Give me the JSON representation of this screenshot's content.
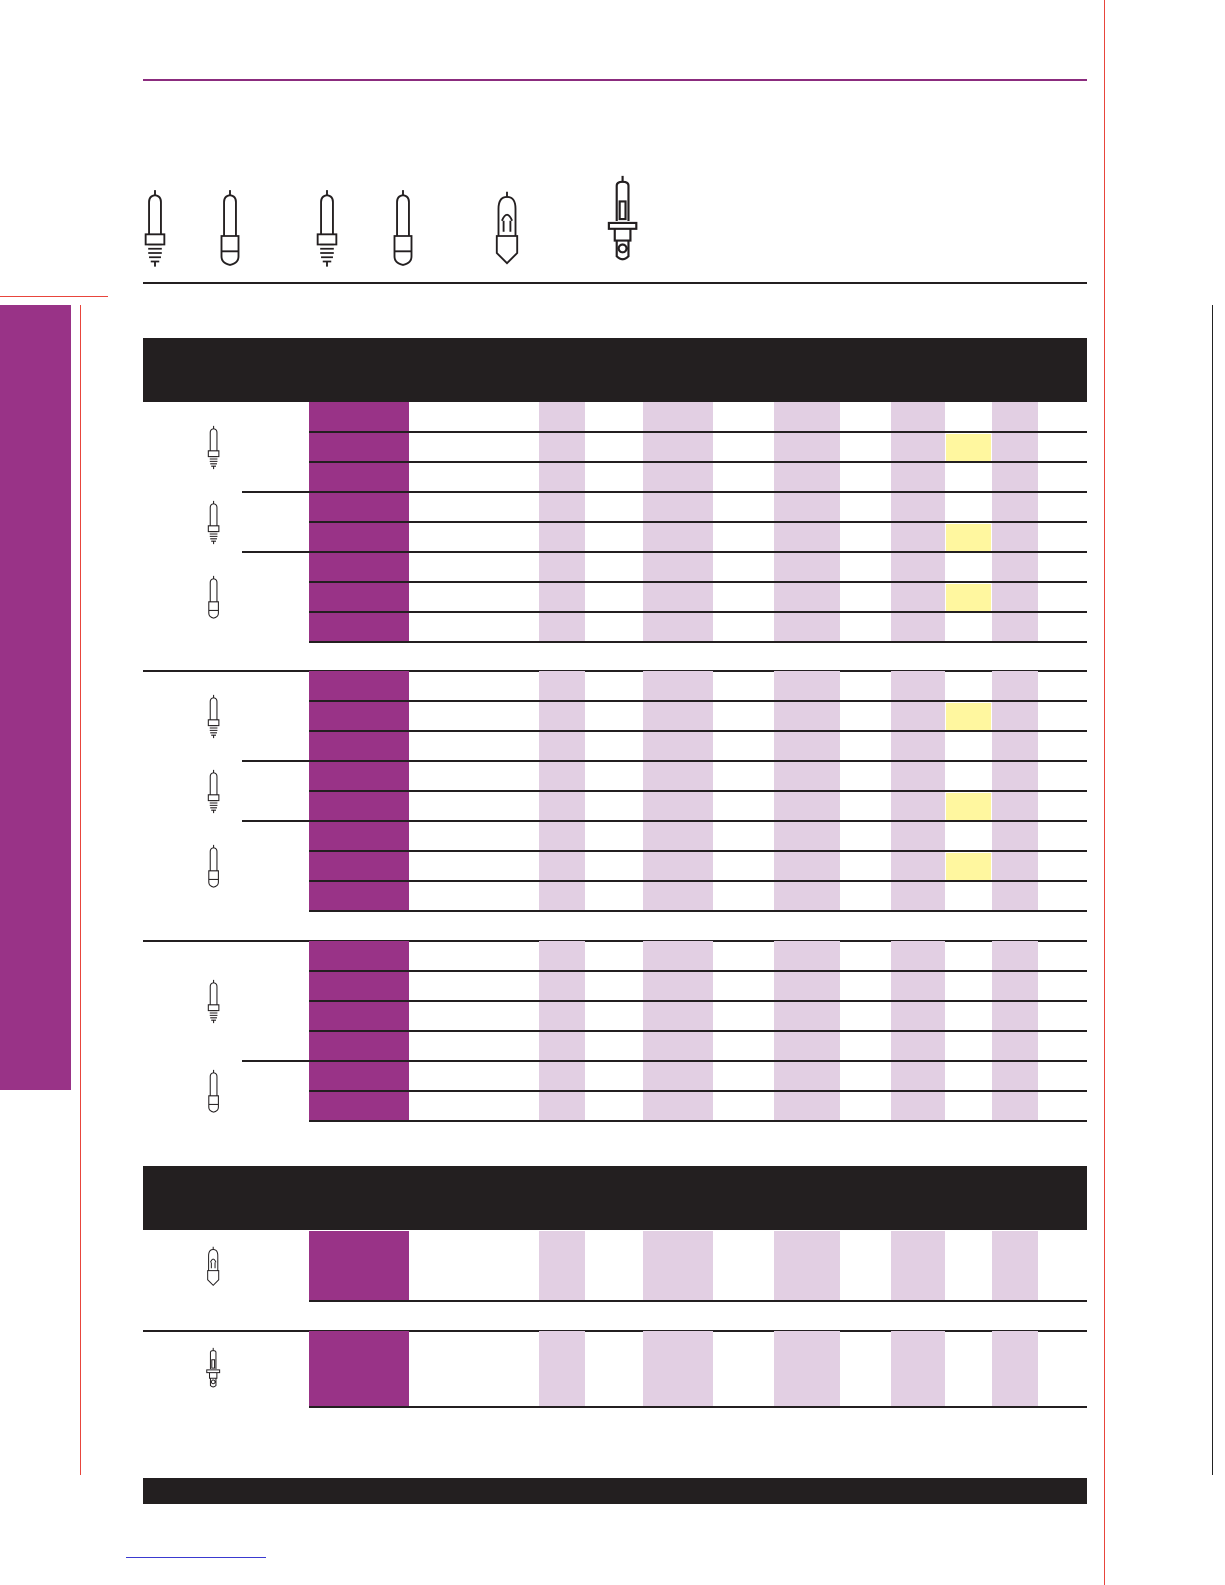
{
  "colors": {
    "brand_purple": "#993387",
    "light_purple": "#e2cfe3",
    "highlight_yellow": "#fff79f",
    "dark": "#231f20",
    "trim_red": "#e8453c",
    "rule_purple": "#8b2c7e"
  },
  "header_icons": [
    {
      "icon": "mini-candelabra-bulb-icon"
    },
    {
      "icon": "bayonet-bulb-icon"
    },
    {
      "icon": "mini-candelabra-bulb-icon"
    },
    {
      "icon": "bayonet-bulb-icon"
    },
    {
      "icon": "mini-bayonet-globe-bulb-icon"
    },
    {
      "icon": "h-type-bulb-icon"
    }
  ],
  "sections": [
    {
      "rows": 8,
      "groups": [
        {
          "icon": "mini-candelabra-bulb-icon",
          "rows": 3
        },
        {
          "icon": "mini-candelabra-bulb-icon",
          "rows": 2
        },
        {
          "icon": "bayonet-bulb-icon",
          "rows": 3
        }
      ],
      "highlighted_rows": [
        1,
        4,
        6
      ]
    },
    {
      "rows": 8,
      "groups": [
        {
          "icon": "mini-candelabra-bulb-icon",
          "rows": 3
        },
        {
          "icon": "mini-candelabra-bulb-icon",
          "rows": 2
        },
        {
          "icon": "bayonet-bulb-icon",
          "rows": 3
        }
      ],
      "highlighted_rows": [
        1,
        4,
        6
      ]
    },
    {
      "rows": 6,
      "groups": [
        {
          "icon": "mini-candelabra-bulb-icon",
          "rows": 4
        },
        {
          "icon": "bayonet-bulb-icon",
          "rows": 2
        }
      ],
      "highlighted_rows": []
    }
  ],
  "lower_sections": [
    {
      "icon": "mini-bayonet-globe-bulb-icon"
    },
    {
      "icon": "h-type-bulb-icon"
    }
  ]
}
